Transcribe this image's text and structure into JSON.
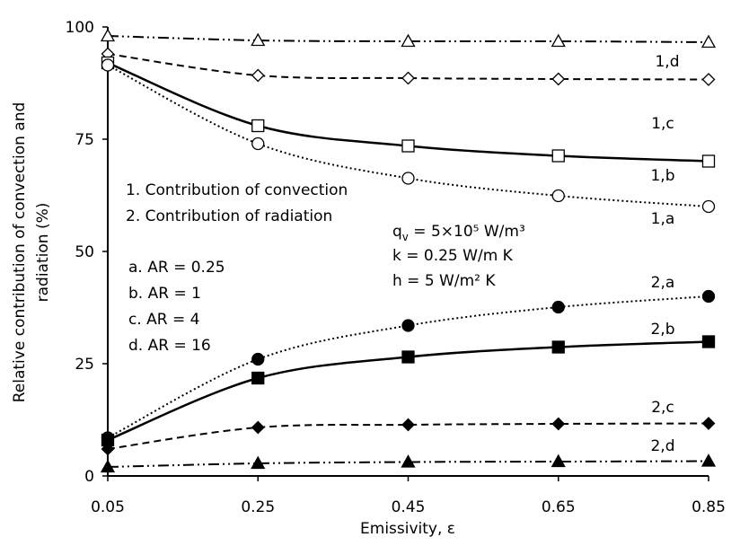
{
  "chart_data": {
    "type": "line",
    "xlabel": "Emissivity, ε",
    "ylabel_lines": [
      "Relative contribution of convection and",
      "radiation (%)"
    ],
    "xlim": [
      0.05,
      0.85
    ],
    "ylim": [
      0,
      100
    ],
    "x_ticks": [
      0.05,
      0.25,
      0.45,
      0.65,
      0.85
    ],
    "x_tick_labels": [
      "0.05",
      "0.25",
      "0.45",
      "0.65",
      "0.85"
    ],
    "y_ticks": [
      0,
      25,
      50,
      75,
      100
    ],
    "y_tick_labels": [
      "0",
      "25",
      "50",
      "75",
      "100"
    ],
    "grid": false,
    "x": [
      0.05,
      0.25,
      0.45,
      0.65,
      0.85
    ],
    "series": [
      {
        "name": "1,d",
        "marker": "triangle",
        "filled": false,
        "dash": "dashdotdot",
        "values": [
          98,
          97,
          96.8,
          96.8,
          96.6
        ]
      },
      {
        "name": "1,c",
        "marker": "diamond",
        "filled": false,
        "dash": "dash",
        "values": [
          94,
          89.2,
          88.6,
          88.4,
          88.3
        ]
      },
      {
        "name": "1,b",
        "marker": "square",
        "filled": false,
        "dash": "solid",
        "values": [
          92,
          78,
          73.5,
          71.3,
          70.1
        ]
      },
      {
        "name": "1,a",
        "marker": "circle",
        "filled": false,
        "dash": "dot",
        "values": [
          91.5,
          74,
          66.3,
          62.4,
          60
        ]
      },
      {
        "name": "2,a",
        "marker": "circle",
        "filled": true,
        "dash": "dot",
        "values": [
          8.5,
          26,
          33.5,
          37.6,
          40
        ]
      },
      {
        "name": "2,b",
        "marker": "square",
        "filled": true,
        "dash": "solid",
        "values": [
          8,
          21.8,
          26.5,
          28.7,
          29.9
        ]
      },
      {
        "name": "2,c",
        "marker": "diamond",
        "filled": true,
        "dash": "dash",
        "values": [
          6,
          10.8,
          11.4,
          11.6,
          11.7
        ]
      },
      {
        "name": "2,d",
        "marker": "triangle",
        "filled": true,
        "dash": "dashdotdot",
        "values": [
          2,
          2.8,
          3.1,
          3.2,
          3.3
        ]
      }
    ],
    "annotations": {
      "legend_lines": [
        "1. Contribution of convection",
        "2. Contribution of radiation"
      ],
      "ar_lines": [
        "a. AR = 0.25",
        "b. AR = 1",
        "c. AR = 4",
        "d. AR = 16"
      ],
      "param_qv_prefix": "q",
      "param_qv_sub": "v",
      "param_qv_rest": " = 5×10⁵ W/m³",
      "param_k": "k = 0.25 W/m K",
      "param_h": "h = 5 W/m² K"
    }
  }
}
